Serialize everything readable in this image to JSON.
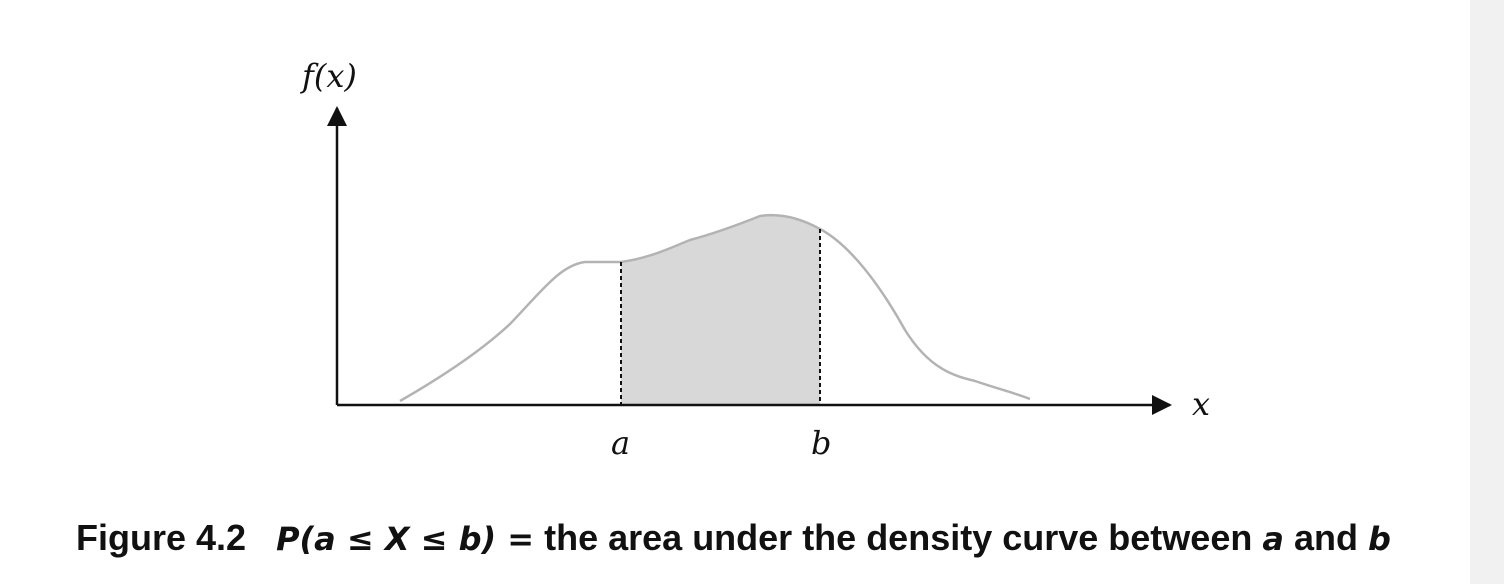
{
  "axes": {
    "y_label": "f(x)",
    "x_label": "x"
  },
  "markers": {
    "a_label": "a",
    "b_label": "b"
  },
  "caption": {
    "figure_number": "Figure 4.2",
    "expression": "P(a ≤ X ≤ b) =",
    "text": "the area under the density curve between",
    "var_a": "a",
    "conjunction": "and",
    "var_b": "b"
  },
  "colors": {
    "curve": "#b3b3b3",
    "shaded_region": "#d8d8d8",
    "axis": "#111111",
    "dashed_line": "#111111"
  }
}
